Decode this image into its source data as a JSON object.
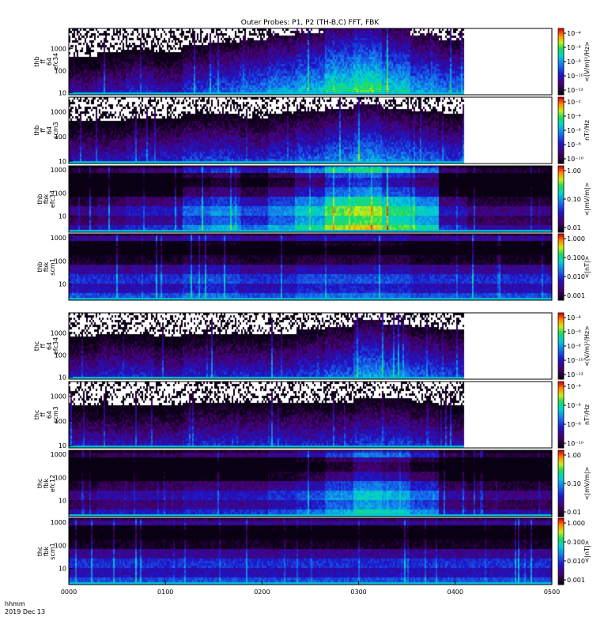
{
  "chart_data": {
    "type": "heatmap",
    "title": "Outer Probes: P1, P2 (TH-B,C) FFT, FBK",
    "x_corner_labels": [
      "hhmm",
      "2019 Dec 13"
    ],
    "x_ticks": [
      "0000",
      "0100",
      "0200",
      "0300",
      "0400",
      "0500"
    ],
    "xlim_minutes": [
      0,
      300
    ],
    "panels": [
      {
        "id": "thb-ff-efc34",
        "ylabel": [
          "thb",
          "ff",
          "64",
          "efc34"
        ],
        "yscale": "log",
        "yticks": [
          "10",
          "100",
          "1000"
        ],
        "ylim": [
          8,
          8000
        ],
        "zscale": "log",
        "zlabel": "<(V/m)²/Hz>",
        "zticks": [
          "10⁻⁴",
          "10⁻⁶",
          "10⁻⁸",
          "10⁻¹⁰",
          "10⁻¹²"
        ],
        "data_end_minutes": 245,
        "activity": [
          0.25,
          0.3,
          0.35,
          0.3,
          0.4,
          0.45,
          0.5,
          0.55,
          0.6,
          0.7,
          0.75,
          0.65,
          0.55,
          0.5,
          0.45,
          0.3,
          0.2
        ]
      },
      {
        "id": "thb-ff-scm3",
        "ylabel": [
          "thb",
          "ff",
          "64",
          "scm3"
        ],
        "yscale": "log",
        "yticks": [
          "10",
          "100",
          "1000"
        ],
        "ylim": [
          8,
          4000
        ],
        "zscale": "log",
        "zlabel": "nT²/Hz",
        "zticks": [
          "10⁻²",
          "10⁻⁴",
          "10⁻⁶",
          "10⁻⁸",
          "10⁻¹⁰"
        ],
        "data_end_minutes": 245,
        "activity": [
          0.3,
          0.3,
          0.35,
          0.35,
          0.4,
          0.4,
          0.35,
          0.4,
          0.45,
          0.5,
          0.55,
          0.5,
          0.45,
          0.4,
          0.35,
          0.3,
          0.3
        ]
      },
      {
        "id": "thb-fbk-efc34",
        "ylabel": [
          "thb",
          "fbk",
          "efc34"
        ],
        "yscale": "log",
        "yticks": [
          "10",
          "100",
          "1000"
        ],
        "ylim": [
          2,
          1500
        ],
        "zscale": "log",
        "zlabel": "<|mV/m|>",
        "zticks": [
          "1.00",
          "0.10",
          "0.01"
        ],
        "data_end_minutes": 300,
        "activity": [
          0.2,
          0.25,
          0.3,
          0.3,
          0.45,
          0.5,
          0.4,
          0.5,
          0.6,
          0.75,
          0.8,
          0.7,
          0.6,
          0.3,
          0.2,
          0.2,
          0.2
        ]
      },
      {
        "id": "thb-fbk-scm1",
        "ylabel": [
          "thb",
          "fbk",
          "scm1"
        ],
        "yscale": "log",
        "yticks": [
          "10",
          "100",
          "1000"
        ],
        "ylim": [
          2,
          1500
        ],
        "zscale": "log",
        "zlabel": "<|nT|>",
        "zticks": [
          "1.000",
          "0.100",
          "0.010",
          "0.001"
        ],
        "data_end_minutes": 300,
        "activity": [
          0.35,
          0.35,
          0.35,
          0.35,
          0.4,
          0.4,
          0.35,
          0.35,
          0.4,
          0.4,
          0.4,
          0.4,
          0.35,
          0.35,
          0.35,
          0.35,
          0.35
        ]
      },
      {
        "id": "thc-ff-efc34",
        "ylabel": [
          "thc",
          "ff",
          "64",
          "efc34"
        ],
        "yscale": "log",
        "yticks": [
          "10",
          "100",
          "1000"
        ],
        "ylim": [
          8,
          8000
        ],
        "zscale": "log",
        "zlabel": "<(V/m)²/Hz>",
        "zticks": [
          "10⁻⁴",
          "10⁻⁶",
          "10⁻⁸",
          "10⁻¹⁰",
          "10⁻¹²"
        ],
        "data_end_minutes": 245,
        "activity": [
          0.3,
          0.35,
          0.35,
          0.3,
          0.35,
          0.35,
          0.35,
          0.35,
          0.4,
          0.45,
          0.55,
          0.5,
          0.45,
          0.4,
          0.35,
          0.3,
          0.3
        ]
      },
      {
        "id": "thc-ff-scm3",
        "ylabel": [
          "thc",
          "ff",
          "64",
          "scm3"
        ],
        "yscale": "log",
        "yticks": [
          "10",
          "100",
          "1000"
        ],
        "ylim": [
          8,
          4000
        ],
        "zscale": "log",
        "zlabel": "nT²/Hz",
        "zticks": [
          "10⁻⁴",
          "10⁻⁶",
          "10⁻⁸",
          "10⁻¹⁰"
        ],
        "data_end_minutes": 245,
        "activity": [
          0.3,
          0.3,
          0.3,
          0.3,
          0.35,
          0.35,
          0.35,
          0.35,
          0.35,
          0.35,
          0.4,
          0.4,
          0.35,
          0.3,
          0.3,
          0.3,
          0.3
        ]
      },
      {
        "id": "thc-fbk-efc12",
        "ylabel": [
          "thc",
          "fbk",
          "efc12"
        ],
        "yscale": "log",
        "yticks": [
          "10",
          "100",
          "1000"
        ],
        "ylim": [
          2,
          1500
        ],
        "zscale": "log",
        "zlabel": "<|mV/m|>",
        "zticks": [
          "1.00",
          "0.10",
          "0.01"
        ],
        "data_end_minutes": 300,
        "activity": [
          0.2,
          0.25,
          0.25,
          0.25,
          0.3,
          0.3,
          0.3,
          0.35,
          0.4,
          0.5,
          0.6,
          0.55,
          0.45,
          0.25,
          0.2,
          0.2,
          0.2
        ]
      },
      {
        "id": "thc-fbk-scm1",
        "ylabel": [
          "thc",
          "fbk",
          "scm1"
        ],
        "yscale": "log",
        "yticks": [
          "10",
          "100",
          "1000"
        ],
        "ylim": [
          2,
          1500
        ],
        "zscale": "log",
        "zlabel": "<|nT|>",
        "zticks": [
          "1.000",
          "0.100",
          "0.010",
          "0.001"
        ],
        "data_end_minutes": 300,
        "activity": [
          0.35,
          0.35,
          0.35,
          0.35,
          0.35,
          0.35,
          0.35,
          0.35,
          0.35,
          0.35,
          0.35,
          0.35,
          0.35,
          0.35,
          0.35,
          0.35,
          0.35
        ]
      }
    ]
  }
}
